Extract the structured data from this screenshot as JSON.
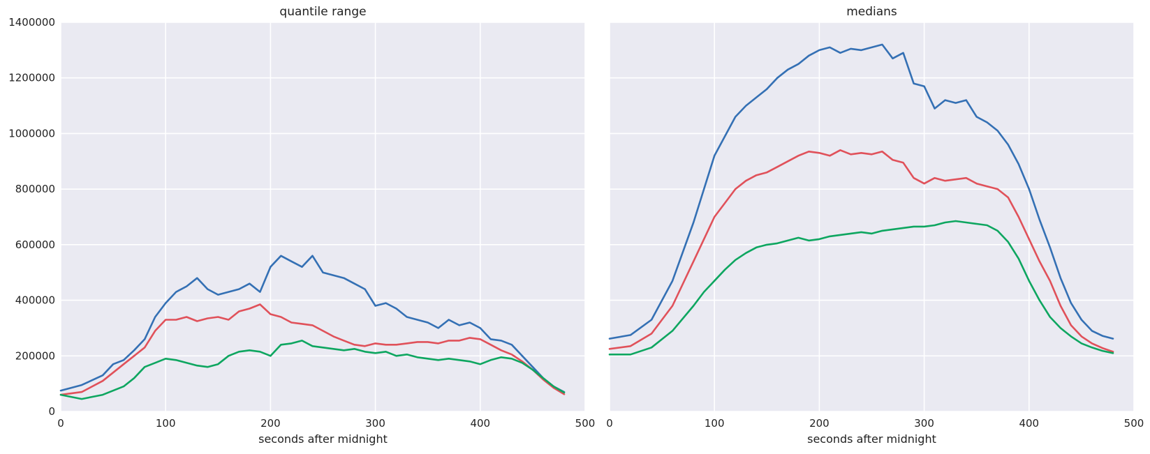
{
  "colors": {
    "background": "#eaeaf2",
    "grid": "#ffffff",
    "series": [
      "#3470b4",
      "#e0515a",
      "#0ea660"
    ]
  },
  "chart_data": [
    {
      "type": "line",
      "title": "quantile range",
      "xlabel": "seconds after midnight",
      "ylabel": "",
      "xlim": [
        0,
        500
      ],
      "ylim": [
        0,
        1400000
      ],
      "xticks": [
        "0",
        "100",
        "200",
        "300",
        "400",
        "500"
      ],
      "yticks": [
        "0",
        "200000",
        "400000",
        "600000",
        "800000",
        "1000000",
        "1200000",
        "1400000"
      ],
      "grid": true,
      "series": [
        {
          "x": [
            0,
            20,
            40,
            50,
            60,
            70,
            80,
            90,
            100,
            110,
            120,
            130,
            140,
            150,
            160,
            170,
            180,
            190,
            200,
            210,
            220,
            230,
            240,
            250,
            260,
            270,
            280,
            290,
            300,
            310,
            320,
            330,
            340,
            350,
            360,
            370,
            380,
            390,
            400,
            410,
            420,
            430,
            440,
            450,
            460,
            470,
            480
          ],
          "y": [
            75000,
            95000,
            130000,
            170000,
            185000,
            220000,
            260000,
            340000,
            390000,
            430000,
            450000,
            480000,
            440000,
            420000,
            430000,
            440000,
            460000,
            430000,
            520000,
            560000,
            540000,
            520000,
            560000,
            500000,
            490000,
            480000,
            460000,
            440000,
            380000,
            390000,
            370000,
            340000,
            330000,
            320000,
            300000,
            330000,
            310000,
            320000,
            300000,
            260000,
            255000,
            240000,
            200000,
            160000,
            120000,
            90000,
            70000
          ]
        },
        {
          "x": [
            0,
            20,
            40,
            50,
            60,
            70,
            80,
            90,
            100,
            110,
            120,
            130,
            140,
            150,
            160,
            170,
            180,
            190,
            200,
            210,
            220,
            230,
            240,
            250,
            260,
            270,
            280,
            290,
            300,
            310,
            320,
            330,
            340,
            350,
            360,
            370,
            380,
            390,
            400,
            410,
            420,
            430,
            440,
            450,
            460,
            470,
            480
          ],
          "y": [
            60000,
            70000,
            110000,
            140000,
            170000,
            200000,
            230000,
            290000,
            330000,
            330000,
            340000,
            325000,
            335000,
            340000,
            330000,
            360000,
            370000,
            385000,
            350000,
            340000,
            320000,
            315000,
            310000,
            290000,
            270000,
            255000,
            240000,
            235000,
            245000,
            240000,
            240000,
            245000,
            250000,
            250000,
            245000,
            255000,
            255000,
            265000,
            260000,
            240000,
            220000,
            205000,
            180000,
            150000,
            115000,
            85000,
            62000
          ]
        },
        {
          "x": [
            0,
            20,
            40,
            50,
            60,
            70,
            80,
            90,
            100,
            110,
            120,
            130,
            140,
            150,
            160,
            170,
            180,
            190,
            200,
            210,
            220,
            230,
            240,
            250,
            260,
            270,
            280,
            290,
            300,
            310,
            320,
            330,
            340,
            350,
            360,
            370,
            380,
            390,
            400,
            410,
            420,
            430,
            440,
            450,
            460,
            470,
            480
          ],
          "y": [
            60000,
            45000,
            60000,
            75000,
            90000,
            120000,
            160000,
            175000,
            190000,
            185000,
            175000,
            165000,
            160000,
            170000,
            200000,
            215000,
            220000,
            215000,
            200000,
            240000,
            245000,
            255000,
            235000,
            230000,
            225000,
            220000,
            225000,
            215000,
            210000,
            215000,
            200000,
            205000,
            195000,
            190000,
            185000,
            190000,
            185000,
            180000,
            170000,
            185000,
            195000,
            190000,
            175000,
            150000,
            120000,
            90000,
            68000
          ]
        }
      ]
    },
    {
      "type": "line",
      "title": "medians",
      "xlabel": "seconds after midnight",
      "ylabel": "",
      "xlim": [
        0,
        500
      ],
      "ylim": [
        0,
        1400000
      ],
      "xticks": [
        "0",
        "100",
        "200",
        "300",
        "400",
        "500"
      ],
      "yticks": [],
      "grid": true,
      "series": [
        {
          "x": [
            0,
            20,
            40,
            60,
            80,
            90,
            100,
            110,
            120,
            130,
            140,
            150,
            160,
            170,
            180,
            190,
            200,
            210,
            220,
            230,
            240,
            250,
            260,
            270,
            280,
            290,
            300,
            310,
            320,
            330,
            340,
            350,
            360,
            370,
            380,
            390,
            400,
            410,
            420,
            430,
            440,
            450,
            460,
            470,
            480
          ],
          "y": [
            262000,
            275000,
            330000,
            470000,
            680000,
            800000,
            920000,
            990000,
            1060000,
            1100000,
            1130000,
            1160000,
            1200000,
            1230000,
            1250000,
            1280000,
            1300000,
            1310000,
            1290000,
            1305000,
            1300000,
            1310000,
            1320000,
            1270000,
            1290000,
            1180000,
            1170000,
            1090000,
            1120000,
            1110000,
            1120000,
            1060000,
            1040000,
            1010000,
            960000,
            890000,
            800000,
            690000,
            590000,
            480000,
            390000,
            330000,
            290000,
            272000,
            262000
          ]
        },
        {
          "x": [
            0,
            20,
            40,
            60,
            80,
            90,
            100,
            110,
            120,
            130,
            140,
            150,
            160,
            170,
            180,
            190,
            200,
            210,
            220,
            230,
            240,
            250,
            260,
            270,
            280,
            290,
            300,
            310,
            320,
            330,
            340,
            350,
            360,
            370,
            380,
            390,
            400,
            410,
            420,
            430,
            440,
            450,
            460,
            470,
            480
          ],
          "y": [
            225000,
            235000,
            280000,
            380000,
            540000,
            620000,
            700000,
            750000,
            800000,
            830000,
            850000,
            860000,
            880000,
            900000,
            920000,
            935000,
            930000,
            920000,
            940000,
            925000,
            930000,
            925000,
            935000,
            905000,
            895000,
            840000,
            820000,
            840000,
            830000,
            835000,
            840000,
            820000,
            810000,
            800000,
            770000,
            700000,
            620000,
            540000,
            470000,
            380000,
            310000,
            270000,
            245000,
            228000,
            215000
          ]
        },
        {
          "x": [
            0,
            20,
            40,
            60,
            80,
            90,
            100,
            110,
            120,
            130,
            140,
            150,
            160,
            170,
            180,
            190,
            200,
            210,
            220,
            230,
            240,
            250,
            260,
            270,
            280,
            290,
            300,
            310,
            320,
            330,
            340,
            350,
            360,
            370,
            380,
            390,
            400,
            410,
            420,
            430,
            440,
            450,
            460,
            470,
            480
          ],
          "y": [
            205000,
            205000,
            230000,
            290000,
            380000,
            430000,
            470000,
            510000,
            545000,
            570000,
            590000,
            600000,
            605000,
            615000,
            625000,
            615000,
            620000,
            630000,
            635000,
            640000,
            645000,
            640000,
            650000,
            655000,
            660000,
            665000,
            665000,
            670000,
            680000,
            685000,
            680000,
            675000,
            670000,
            650000,
            610000,
            550000,
            470000,
            400000,
            340000,
            300000,
            270000,
            245000,
            230000,
            218000,
            210000
          ]
        }
      ]
    }
  ]
}
